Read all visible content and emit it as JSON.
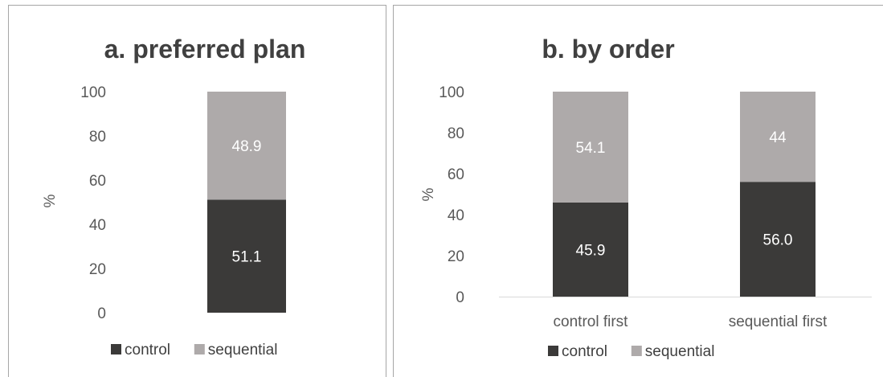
{
  "colors": {
    "control": "#3b3a39",
    "sequential": "#aeaaaa",
    "axis": "#d9d9d9",
    "text": "#595959",
    "border": "#a6a6a6"
  },
  "chart_data": [
    {
      "type": "bar",
      "stacked": true,
      "title": "a. preferred plan",
      "ylabel": "%",
      "xlabel": "",
      "ylim": [
        0,
        100
      ],
      "yticks": [
        "0",
        "20",
        "40",
        "60",
        "80",
        "100"
      ],
      "categories": [
        ""
      ],
      "series": [
        {
          "name": "control",
          "values": [
            51.1
          ],
          "labels": [
            "51.1"
          ]
        },
        {
          "name": "sequential",
          "values": [
            48.9
          ],
          "labels": [
            "48.9"
          ]
        }
      ],
      "legend": [
        "control",
        "sequential"
      ],
      "legend_position": "bottom",
      "grid": false
    },
    {
      "type": "bar",
      "stacked": true,
      "title": "b. by order",
      "ylabel": "%",
      "xlabel": "",
      "ylim": [
        0,
        100
      ],
      "yticks": [
        "0",
        "20",
        "40",
        "60",
        "80",
        "100"
      ],
      "categories": [
        "control first",
        "sequential first"
      ],
      "series": [
        {
          "name": "control",
          "values": [
            45.9,
            56.0
          ],
          "labels": [
            "45.9",
            "56.0"
          ]
        },
        {
          "name": "sequential",
          "values": [
            54.1,
            44
          ],
          "labels": [
            "54.1",
            "44"
          ]
        }
      ],
      "legend": [
        "control",
        "sequential"
      ],
      "legend_position": "bottom",
      "grid": false
    }
  ]
}
